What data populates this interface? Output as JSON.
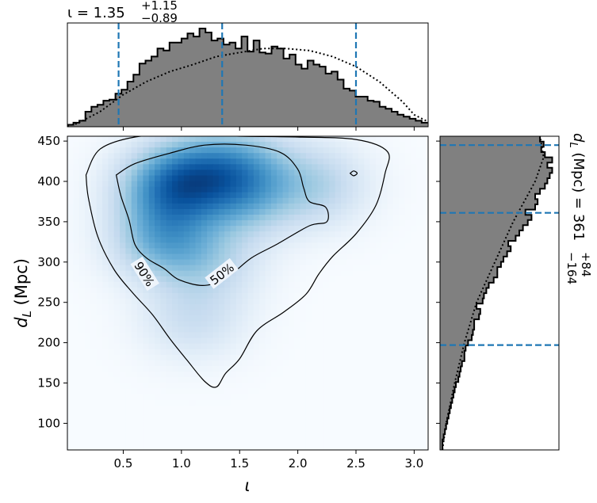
{
  "chart_data": [
    {
      "name": "joint-density",
      "type": "heatmap",
      "xlabel": "ι",
      "ylabel": "d_L (Mpc)",
      "xlim": [
        0.02,
        3.12
      ],
      "ylim": [
        67,
        456
      ],
      "xticks": [
        0.5,
        1.0,
        1.5,
        2.0,
        2.5,
        3.0
      ],
      "xtick_labels": [
        "0.5",
        "1.0",
        "1.5",
        "2.0",
        "2.5",
        "3.0"
      ],
      "yticks": [
        100,
        150,
        200,
        250,
        300,
        350,
        400,
        450
      ],
      "ytick_labels": [
        "100",
        "150",
        "200",
        "250",
        "300",
        "350",
        "400",
        "450"
      ],
      "colormap": "Blues",
      "density_peaks": [
        {
          "x": 0.9,
          "y": 392,
          "weight": 1.0
        },
        {
          "x": 0.85,
          "y": 328,
          "weight": 0.75
        },
        {
          "x": 1.2,
          "y": 410,
          "weight": 0.7
        },
        {
          "x": 1.55,
          "y": 415,
          "weight": 0.6
        },
        {
          "x": 1.55,
          "y": 375,
          "weight": 0.45
        },
        {
          "x": 2.15,
          "y": 395,
          "weight": 0.45
        },
        {
          "x": 1.25,
          "y": 300,
          "weight": 0.35
        },
        {
          "x": 1.1,
          "y": 230,
          "weight": 0.3
        }
      ],
      "contours": [
        {
          "label": "90%",
          "label_pos": [
            0.68,
            285
          ],
          "points": [
            [
              0.18,
              408
            ],
            [
              0.3,
              440
            ],
            [
              0.6,
              455
            ],
            [
              1.0,
              458
            ],
            [
              1.5,
              456
            ],
            [
              2.0,
              455
            ],
            [
              2.5,
              452
            ],
            [
              2.77,
              437
            ],
            [
              2.75,
              410
            ],
            [
              2.67,
              370
            ],
            [
              2.5,
              335
            ],
            [
              2.3,
              307
            ],
            [
              2.18,
              285
            ],
            [
              2.07,
              260
            ],
            [
              1.88,
              238
            ],
            [
              1.65,
              215
            ],
            [
              1.5,
              180
            ],
            [
              1.38,
              162
            ],
            [
              1.3,
              145
            ],
            [
              1.2,
              152
            ],
            [
              1.05,
              178
            ],
            [
              0.9,
              205
            ],
            [
              0.75,
              235
            ],
            [
              0.58,
              262
            ],
            [
              0.42,
              291
            ],
            [
              0.28,
              332
            ],
            [
              0.2,
              380
            ],
            [
              0.18,
              408
            ]
          ]
        },
        {
          "label": "50%",
          "label_pos": [
            1.35,
            285
          ],
          "points": [
            [
              0.44,
              408
            ],
            [
              0.6,
              422
            ],
            [
              0.9,
              435
            ],
            [
              1.2,
              445
            ],
            [
              1.55,
              445
            ],
            [
              1.85,
              436
            ],
            [
              2.0,
              415
            ],
            [
              2.05,
              392
            ],
            [
              2.1,
              375
            ],
            [
              2.24,
              368
            ],
            [
              2.25,
              350
            ],
            [
              2.1,
              345
            ],
            [
              1.82,
              322
            ],
            [
              1.6,
              305
            ],
            [
              1.4,
              282
            ],
            [
              1.2,
              271
            ],
            [
              0.98,
              278
            ],
            [
              0.85,
              292
            ],
            [
              0.7,
              305
            ],
            [
              0.6,
              322
            ],
            [
              0.55,
              352
            ],
            [
              0.48,
              382
            ],
            [
              0.44,
              408
            ]
          ]
        },
        {
          "label": "",
          "points": [
            [
              2.45,
              410
            ],
            [
              2.48,
              413
            ],
            [
              2.51,
              410
            ],
            [
              2.48,
              407
            ],
            [
              2.45,
              410
            ]
          ]
        }
      ]
    },
    {
      "name": "iota-marginal",
      "type": "bar",
      "title": "ι = 1.35",
      "title_sup": "+1.15",
      "title_sub": "−0.89",
      "bin_edges_start": 0.02,
      "bin_width": 0.0516,
      "values": [
        0.02,
        0.04,
        0.06,
        0.15,
        0.2,
        0.22,
        0.26,
        0.27,
        0.33,
        0.37,
        0.45,
        0.52,
        0.63,
        0.66,
        0.7,
        0.78,
        0.76,
        0.84,
        0.84,
        0.88,
        0.93,
        0.9,
        0.98,
        0.94,
        0.86,
        0.88,
        0.82,
        0.84,
        0.78,
        0.9,
        0.75,
        0.86,
        0.74,
        0.73,
        0.8,
        0.78,
        0.68,
        0.72,
        0.62,
        0.58,
        0.66,
        0.62,
        0.6,
        0.53,
        0.55,
        0.47,
        0.38,
        0.36,
        0.3,
        0.3,
        0.26,
        0.25,
        0.2,
        0.18,
        0.15,
        0.12,
        0.1,
        0.08,
        0.06,
        0.04
      ],
      "prior_x": [
        0.02,
        0.1,
        0.3,
        0.5,
        0.7,
        0.9,
        1.1,
        1.3,
        1.5,
        1.7,
        1.9,
        2.1,
        2.3,
        2.5,
        2.7,
        2.9,
        3.0,
        3.12
      ],
      "prior_y": [
        0.01,
        0.03,
        0.15,
        0.32,
        0.45,
        0.55,
        0.62,
        0.7,
        0.74,
        0.78,
        0.78,
        0.76,
        0.7,
        0.6,
        0.45,
        0.25,
        0.12,
        0.05
      ],
      "quantiles": [
        0.46,
        1.35,
        2.5
      ]
    },
    {
      "name": "dL-marginal",
      "type": "bar",
      "title": "d_L (Mpc) = 361",
      "title_sup": "+84",
      "title_sub": "−164",
      "orientation": "horizontal",
      "bin_edges_start": 67,
      "bin_width": 6.48,
      "values": [
        0.02,
        0.02,
        0.03,
        0.04,
        0.05,
        0.06,
        0.07,
        0.08,
        0.09,
        0.1,
        0.11,
        0.12,
        0.13,
        0.15,
        0.16,
        0.17,
        0.18,
        0.2,
        0.2,
        0.21,
        0.23,
        0.26,
        0.27,
        0.28,
        0.28,
        0.32,
        0.33,
        0.3,
        0.35,
        0.36,
        0.38,
        0.4,
        0.44,
        0.47,
        0.47,
        0.5,
        0.52,
        0.55,
        0.58,
        0.56,
        0.62,
        0.65,
        0.68,
        0.72,
        0.75,
        0.7,
        0.78,
        0.8,
        0.78,
        0.82,
        0.86,
        0.88,
        0.9,
        0.92,
        0.88,
        0.92,
        0.86,
        0.83,
        0.85,
        0.82
      ],
      "prior_y": [
        67,
        100,
        150,
        200,
        250,
        300,
        350,
        400,
        430,
        456
      ],
      "prior_x": [
        0.02,
        0.05,
        0.12,
        0.2,
        0.3,
        0.45,
        0.6,
        0.78,
        0.85,
        0.82
      ],
      "quantiles": [
        197,
        361,
        445
      ]
    }
  ]
}
